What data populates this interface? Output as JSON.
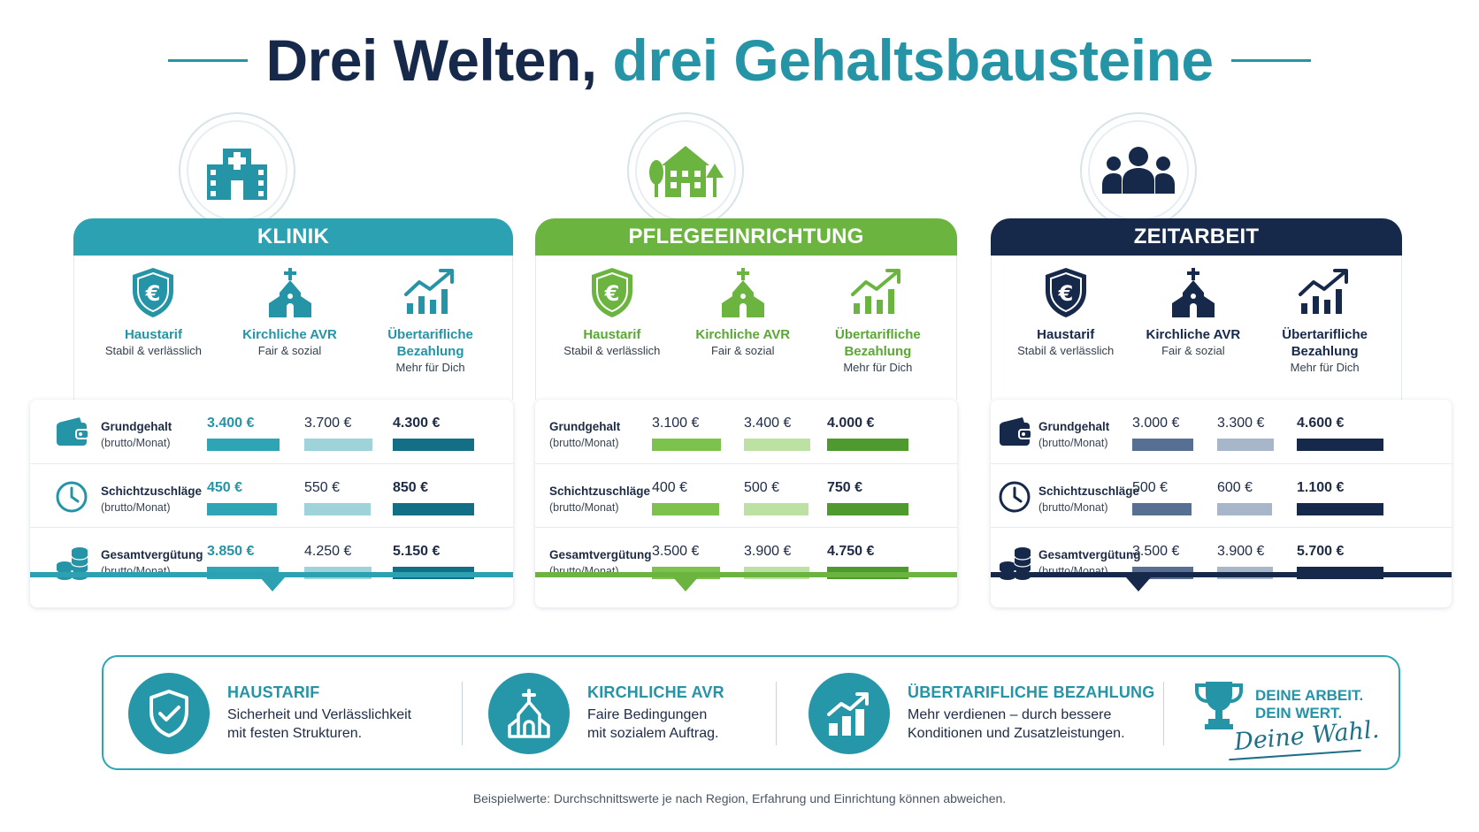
{
  "title": {
    "part1": "Drei Welten,",
    "part2": "drei Gehaltsbausteine"
  },
  "colors": {
    "navy": "#16294a",
    "teal": "#2494a6",
    "green": "#6bb43f",
    "klinik": [
      "#2fa4b4",
      "#9fd3da",
      "#136f86"
    ],
    "pflege": [
      "#7cc24d",
      "#bde0a3",
      "#4e9a2e"
    ],
    "zeit": [
      "#566f92",
      "#a7b6c9",
      "#16294a"
    ]
  },
  "categories": [
    {
      "name": "Haustarif",
      "sub": "Stabil & verlässlich",
      "icon": "euro-shield-icon"
    },
    {
      "name": "Kirchliche AVR",
      "sub": "Fair & sozial",
      "icon": "church-icon"
    },
    {
      "name": "Übertarifliche Bezahlung",
      "sub": "Mehr für Dich",
      "icon": "growth-chart-icon"
    }
  ],
  "rows": [
    {
      "label": "Grundgehalt",
      "sub": "(brutto/Monat)",
      "icon": "wallet-icon"
    },
    {
      "label": "Schichtzuschläge",
      "sub": "(brutto/Monat)",
      "icon": "clock-icon"
    },
    {
      "label": "Gesamtvergütung",
      "sub": "(brutto/Monat)",
      "icon": "coins-icon"
    }
  ],
  "panels": [
    {
      "name": "KLINIK",
      "icon": "hospital-icon",
      "values": [
        [
          "3.400 €",
          "3.700 €",
          "4.300 €"
        ],
        [
          "450 €",
          "550 €",
          "850 €"
        ],
        [
          "3.850 €",
          "4.250 €",
          "5.150 €"
        ]
      ],
      "amounts": [
        [
          3400,
          3700,
          4300
        ],
        [
          450,
          550,
          850
        ],
        [
          3850,
          4250,
          5150
        ]
      ]
    },
    {
      "name": "PFLEGEEINRICHTUNG",
      "icon": "care-home-icon",
      "values": [
        [
          "3.100 €",
          "3.400 €",
          "4.000 €"
        ],
        [
          "400 €",
          "500 €",
          "750 €"
        ],
        [
          "3.500 €",
          "3.900 €",
          "4.750 €"
        ]
      ],
      "amounts": [
        [
          3100,
          3400,
          4000
        ],
        [
          400,
          500,
          750
        ],
        [
          3500,
          3900,
          4750
        ]
      ]
    },
    {
      "name": "ZEITARBEIT",
      "icon": "people-group-icon",
      "values": [
        [
          "3.000 €",
          "3.300 €",
          "4.600 €"
        ],
        [
          "500 €",
          "600 €",
          "1.100 €"
        ],
        [
          "3.500 €",
          "3.900 €",
          "5.700 €"
        ]
      ],
      "amounts": [
        [
          3000,
          3300,
          4600
        ],
        [
          500,
          600,
          1100
        ],
        [
          3500,
          3900,
          5700
        ]
      ]
    }
  ],
  "info": [
    {
      "head": "HAUSTARIF",
      "body1": "Sicherheit und Verlässlichkeit",
      "body2": "mit festen Strukturen.",
      "icon": "shield-check-icon"
    },
    {
      "head": "KIRCHLICHE AVR",
      "body1": "Faire Bedingungen",
      "body2": "mit sozialem Auftrag.",
      "icon": "church-icon"
    },
    {
      "head": "ÜBERTARIFLICHE BEZAHLUNG",
      "body1": "Mehr verdienen – durch bessere",
      "body2": "Konditionen und Zusatzleistungen.",
      "icon": "bar-growth-icon"
    }
  ],
  "motto": {
    "line1": "DEINE ARBEIT.",
    "line2": "DEIN WERT.",
    "script": "Deine Wahl.",
    "icon": "trophy-icon"
  },
  "footnote": "Beispielwerte: Durchschnittswerte je nach Region, Erfahrung und Einrichtung können abweichen."
}
